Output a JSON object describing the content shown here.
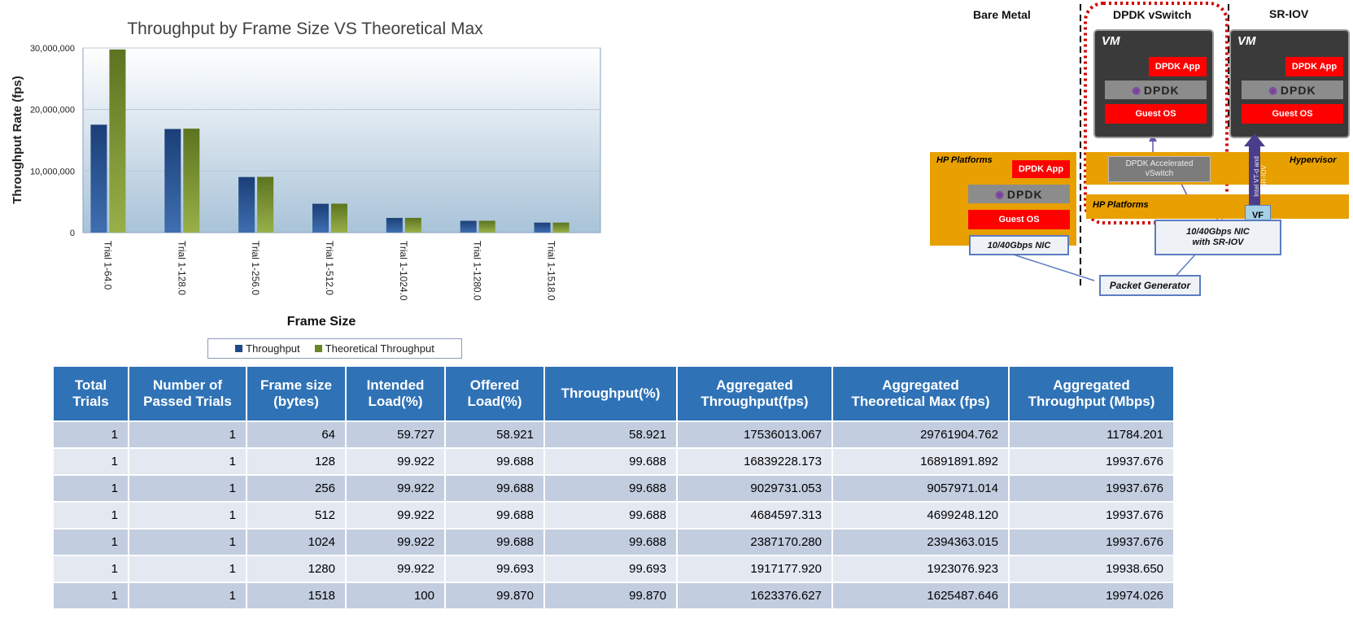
{
  "chart_data": {
    "type": "bar",
    "title": "Throughput by Frame Size VS Theoretical Max",
    "xlabel": "Frame Size",
    "ylabel": "Throughput Rate (fps)",
    "ylim": [
      0,
      30000000
    ],
    "yticks": [
      "0",
      "10,000,000",
      "20,000,000",
      "30,000,000"
    ],
    "ytick_values": [
      0,
      10000000,
      20000000,
      30000000
    ],
    "categories": [
      "Trial 1-64.0",
      "Trial 1-128.0",
      "Trial 1-256.0",
      "Trial 1-512.0",
      "Trial 1-1024.0",
      "Trial 1-1280.0",
      "Trial 1-1518.0"
    ],
    "series": [
      {
        "name": "Throughput",
        "color": "#1f4a86",
        "values": [
          17536013.067,
          16839228.173,
          9029731.053,
          4684597.313,
          2387170.28,
          1917177.92,
          1623376.627
        ]
      },
      {
        "name": "Theoretical Throughput",
        "color": "#6a8428",
        "values": [
          29761904.762,
          16891891.892,
          9057971.014,
          4699248.12,
          2394363.015,
          1923076.923,
          1625487.646
        ]
      }
    ],
    "grid": true,
    "legend": "bottom"
  },
  "table": {
    "headers": [
      "Total\nTrials",
      "Number of\nPassed Trials",
      "Frame size\n(bytes)",
      "Intended\nLoad(%)",
      "Offered\nLoad(%)",
      "Throughput(%)",
      "Aggregated\nThroughput(fps)",
      "Aggregated\nTheoretical Max (fps)",
      "Aggregated\nThroughput (Mbps)"
    ],
    "rows": [
      [
        "1",
        "1",
        "64",
        "59.727",
        "58.921",
        "58.921",
        "17536013.067",
        "29761904.762",
        "11784.201"
      ],
      [
        "1",
        "1",
        "128",
        "99.922",
        "99.688",
        "99.688",
        "16839228.173",
        "16891891.892",
        "19937.676"
      ],
      [
        "1",
        "1",
        "256",
        "99.922",
        "99.688",
        "99.688",
        "9029731.053",
        "9057971.014",
        "19937.676"
      ],
      [
        "1",
        "1",
        "512",
        "99.922",
        "99.688",
        "99.688",
        "4684597.313",
        "4699248.120",
        "19937.676"
      ],
      [
        "1",
        "1",
        "1024",
        "99.922",
        "99.688",
        "99.688",
        "2387170.280",
        "2394363.015",
        "19937.676"
      ],
      [
        "1",
        "1",
        "1280",
        "99.922",
        "99.693",
        "99.693",
        "1917177.920",
        "1923076.923",
        "19938.650"
      ],
      [
        "1",
        "1",
        "1518",
        "100",
        "99.870",
        "99.870",
        "1623376.627",
        "1625487.646",
        "19974.026"
      ]
    ]
  },
  "diagram": {
    "bare_metal": "Bare Metal",
    "dpdk_vswitch": "DPDK vSwitch",
    "sr_iov": "SR-IOV",
    "vm": "VM",
    "dpdk_app": "DPDK App",
    "dpdk": "DPDK",
    "guest_os": "Guest OS",
    "hp_platforms": "HP Platforms",
    "hypervisor": "Hypervisor",
    "dpdk_accel_vswitch": "DPDK Accelerated\nvSwitch",
    "vf": "VF",
    "nic_bare": "10/40Gbps NIC",
    "nic_sriov": "10/40Gbps NIC\nwith SR-IOV",
    "packet_generator": "Packet Generator",
    "intel_vtd": "Intel VT-d and\nSR-IOV"
  }
}
